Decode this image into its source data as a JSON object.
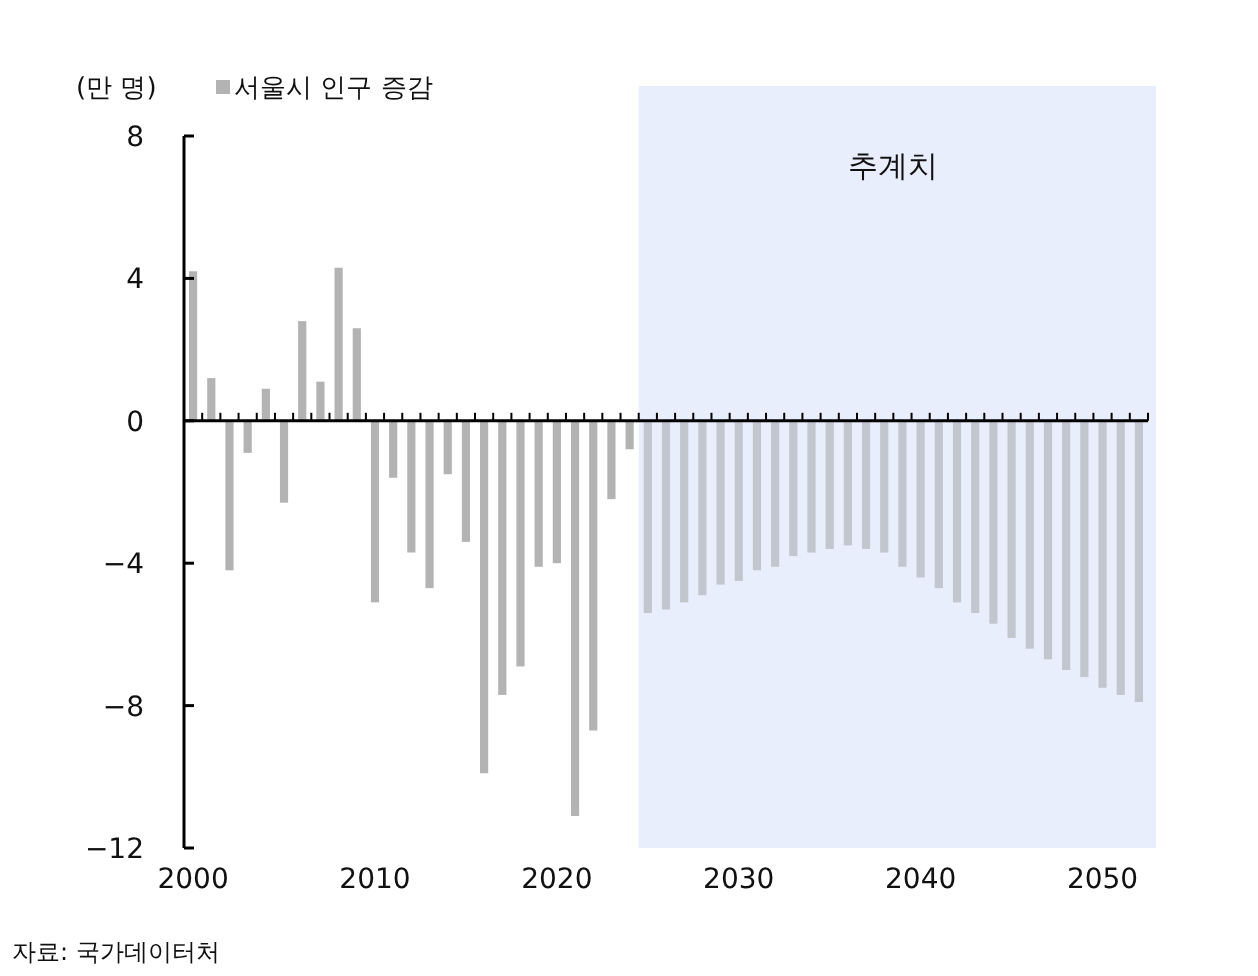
{
  "chart_data": {
    "type": "bar",
    "ylabel": "(만 명)",
    "legend": "top left",
    "x": [
      2000,
      2001,
      2002,
      2003,
      2004,
      2005,
      2006,
      2007,
      2008,
      2009,
      2010,
      2011,
      2012,
      2013,
      2014,
      2015,
      2016,
      2017,
      2018,
      2019,
      2020,
      2021,
      2022,
      2023,
      2024,
      2025,
      2026,
      2027,
      2028,
      2029,
      2030,
      2031,
      2032,
      2033,
      2034,
      2035,
      2036,
      2037,
      2038,
      2039,
      2040,
      2041,
      2042,
      2043,
      2044,
      2045,
      2046,
      2047,
      2048,
      2049,
      2050,
      2051,
      2052
    ],
    "xlim": [
      1999.5,
      2052.5
    ],
    "xticks": [
      2000,
      2010,
      2020,
      2030,
      2040,
      2050
    ],
    "ylim": [
      -12,
      8
    ],
    "yticks": [
      {
        "value": -12,
        "label": "−12"
      },
      {
        "value": -8,
        "label": "−8"
      },
      {
        "value": -4,
        "label": "−4"
      },
      0,
      4,
      8
    ],
    "series": [
      {
        "name": "서울시 인구 증감",
        "color": "#b3b3b3",
        "colors": [
          "#b3b3b3",
          "#b3b3b3",
          "#b3b3b3",
          "#b3b3b3",
          "#b3b3b3",
          "#b3b3b3",
          "#b3b3b3",
          "#b3b3b3",
          "#b3b3b3",
          "#b3b3b3",
          "#b3b3b3",
          "#b3b3b3",
          "#b3b3b3",
          "#b3b3b3",
          "#b3b3b3",
          "#b3b3b3",
          "#b3b3b3",
          "#b3b3b3",
          "#b3b3b3",
          "#b3b3b3",
          "#b3b3b3",
          "#b3b3b3",
          "#b3b3b3",
          "#b3b3b3",
          "#b3b3b3",
          "#c2c6ce",
          "#c2c6ce",
          "#c2c6ce",
          "#c2c6ce",
          "#c2c6ce",
          "#c2c6ce",
          "#c2c6ce",
          "#c2c6ce",
          "#c2c6ce",
          "#c2c6ce",
          "#c2c6ce",
          "#c2c6ce",
          "#c2c6ce",
          "#c2c6ce",
          "#c2c6ce",
          "#c2c6ce",
          "#c2c6ce",
          "#c2c6ce",
          "#c2c6ce",
          "#c2c6ce",
          "#c2c6ce",
          "#c2c6ce",
          "#c2c6ce",
          "#c2c6ce",
          "#c2c6ce",
          "#c2c6ce",
          "#c2c6ce",
          "#c2c6ce"
        ],
        "values": [
          4.2,
          1.2,
          -4.2,
          -0.9,
          0.9,
          -2.3,
          2.8,
          1.1,
          4.3,
          2.6,
          -5.1,
          -1.6,
          -3.7,
          -4.7,
          -1.5,
          -3.4,
          -9.9,
          -7.7,
          -6.9,
          -4.1,
          -4.0,
          -11.1,
          -8.7,
          -2.2,
          -0.8,
          -5.4,
          -5.3,
          -5.1,
          -4.9,
          -4.6,
          -4.5,
          -4.2,
          -4.1,
          -3.8,
          -3.7,
          -3.6,
          -3.5,
          -3.6,
          -3.7,
          -4.1,
          -4.4,
          -4.7,
          -5.1,
          -5.4,
          -5.7,
          -6.1,
          -6.4,
          -6.7,
          -7.0,
          -7.2,
          -7.5,
          -7.7,
          -7.9
        ]
      }
    ],
    "bands": [
      {
        "axis": "x",
        "from": 2024.5,
        "to": 2052.5,
        "label": "추계치",
        "color": "#e8eefc"
      }
    ],
    "annotations": [
      "자료: 국가데이터처"
    ]
  }
}
